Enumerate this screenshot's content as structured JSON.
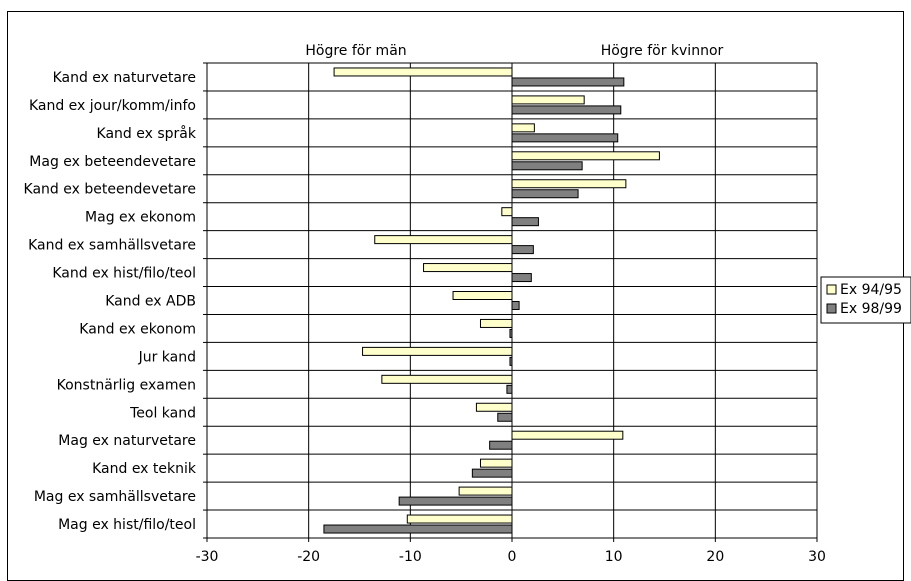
{
  "chart_data": {
    "type": "bar",
    "orientation": "horizontal",
    "categories": [
      "Kand ex naturvetare",
      "Kand ex jour/komm/info",
      "Kand ex språk",
      "Mag ex beteendevetare",
      "Kand ex beteendevetare",
      "Mag ex ekonom",
      "Kand ex samhällsvetare",
      "Kand ex hist/filo/teol",
      "Kand ex ADB",
      "Kand ex ekonom",
      "Jur kand",
      "Konstnärlig examen",
      "Teol kand",
      "Mag ex naturvetare",
      "Kand ex teknik",
      "Mag ex samhällsvetare",
      "Mag ex hist/filo/teol"
    ],
    "series": [
      {
        "name": "Ex 94/95",
        "color": "#ffffcc",
        "values": [
          -17.5,
          7.1,
          2.2,
          14.5,
          11.2,
          -1.0,
          -13.5,
          -8.7,
          -5.8,
          -3.1,
          -14.7,
          -12.8,
          -3.5,
          10.9,
          -3.1,
          -5.2,
          -10.3
        ]
      },
      {
        "name": "Ex 98/99",
        "color": "#808080",
        "values": [
          11.0,
          10.7,
          10.4,
          6.9,
          6.5,
          2.6,
          2.1,
          1.9,
          0.7,
          -0.2,
          -0.2,
          -0.5,
          -1.4,
          -2.2,
          -3.9,
          -11.1,
          -18.5
        ]
      }
    ],
    "xlim": [
      -30,
      30
    ],
    "xticks": [
      "-30",
      "-20",
      "-10",
      "0",
      "10",
      "20",
      "30"
    ],
    "annotations": {
      "left": "Högre för män",
      "right": "Högre för kvinnor"
    },
    "grid": true,
    "legend_position": "right"
  }
}
